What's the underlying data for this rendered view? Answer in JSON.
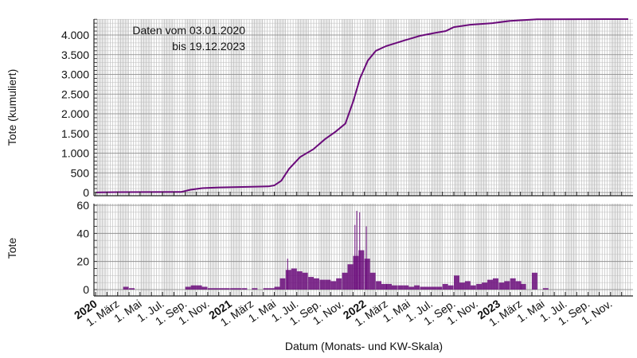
{
  "chart_data": [
    {
      "type": "line",
      "ylabel": "Tote (kumuliert)",
      "annotation": [
        "Daten vom 03.01.2020",
        "bis 19.12.2023"
      ],
      "ylim": [
        0,
        4400
      ],
      "yticks": [
        0,
        500,
        1000,
        1500,
        2000,
        2500,
        3000,
        3500,
        4000
      ],
      "ytick_labels": [
        "0",
        "500",
        "1.000",
        "1.500",
        "2.000",
        "2.500",
        "3.000",
        "3.500",
        "4.000"
      ],
      "grid": true,
      "color": "#6a0a7a",
      "points": [
        [
          "2020-01-03",
          2
        ],
        [
          "2020-03-01",
          10
        ],
        [
          "2020-08-20",
          15
        ],
        [
          "2020-09-15",
          70
        ],
        [
          "2020-10-15",
          110
        ],
        [
          "2020-12-01",
          130
        ],
        [
          "2021-03-01",
          145
        ],
        [
          "2021-04-15",
          155
        ],
        [
          "2021-05-01",
          180
        ],
        [
          "2021-05-20",
          300
        ],
        [
          "2021-06-10",
          600
        ],
        [
          "2021-07-10",
          900
        ],
        [
          "2021-08-15",
          1100
        ],
        [
          "2021-09-15",
          1350
        ],
        [
          "2021-10-15",
          1550
        ],
        [
          "2021-11-10",
          1750
        ],
        [
          "2021-12-01",
          2300
        ],
        [
          "2021-12-20",
          2900
        ],
        [
          "2022-01-10",
          3350
        ],
        [
          "2022-02-01",
          3600
        ],
        [
          "2022-03-01",
          3720
        ],
        [
          "2022-04-15",
          3850
        ],
        [
          "2022-06-01",
          3980
        ],
        [
          "2022-07-10",
          4050
        ],
        [
          "2022-08-10",
          4100
        ],
        [
          "2022-09-01",
          4200
        ],
        [
          "2022-10-15",
          4260
        ],
        [
          "2022-12-15",
          4300
        ],
        [
          "2023-02-01",
          4360
        ],
        [
          "2023-04-15",
          4400
        ],
        [
          "2023-12-19",
          4405
        ]
      ]
    },
    {
      "type": "bar",
      "ylabel": "Tote",
      "ylim": [
        0,
        60
      ],
      "yticks": [
        0,
        20,
        40,
        60
      ],
      "ytick_labels": [
        "0",
        "20",
        "40",
        "60"
      ],
      "grid": true,
      "color": "#6a0a7a",
      "bars": [
        [
          "2020-03-16",
          2
        ],
        [
          "2020-04-01",
          1
        ],
        [
          "2020-09-01",
          2
        ],
        [
          "2020-09-16",
          3
        ],
        [
          "2020-10-01",
          3
        ],
        [
          "2020-10-16",
          2
        ],
        [
          "2020-11-01",
          1
        ],
        [
          "2020-11-16",
          1
        ],
        [
          "2020-12-01",
          1
        ],
        [
          "2020-12-16",
          1
        ],
        [
          "2021-01-01",
          1
        ],
        [
          "2021-01-16",
          1
        ],
        [
          "2021-02-01",
          1
        ],
        [
          "2021-03-01",
          1
        ],
        [
          "2021-04-01",
          1
        ],
        [
          "2021-04-16",
          1
        ],
        [
          "2021-05-01",
          2
        ],
        [
          "2021-05-16",
          8
        ],
        [
          "2021-06-01",
          14
        ],
        [
          "2021-06-16",
          15
        ],
        [
          "2021-07-01",
          13
        ],
        [
          "2021-07-16",
          12
        ],
        [
          "2021-08-01",
          9
        ],
        [
          "2021-08-16",
          8
        ],
        [
          "2021-09-01",
          7
        ],
        [
          "2021-09-16",
          7
        ],
        [
          "2021-10-01",
          6
        ],
        [
          "2021-10-16",
          8
        ],
        [
          "2021-11-01",
          12
        ],
        [
          "2021-11-16",
          18
        ],
        [
          "2021-12-01",
          24
        ],
        [
          "2021-12-16",
          28
        ],
        [
          "2022-01-01",
          22
        ],
        [
          "2022-01-16",
          12
        ],
        [
          "2022-02-01",
          6
        ],
        [
          "2022-02-16",
          4
        ],
        [
          "2022-03-01",
          4
        ],
        [
          "2022-03-16",
          3
        ],
        [
          "2022-04-01",
          3
        ],
        [
          "2022-04-16",
          3
        ],
        [
          "2022-05-01",
          2
        ],
        [
          "2022-05-16",
          3
        ],
        [
          "2022-06-01",
          2
        ],
        [
          "2022-06-16",
          2
        ],
        [
          "2022-07-01",
          2
        ],
        [
          "2022-07-16",
          2
        ],
        [
          "2022-08-01",
          4
        ],
        [
          "2022-08-16",
          3
        ],
        [
          "2022-09-01",
          10
        ],
        [
          "2022-09-16",
          5
        ],
        [
          "2022-10-01",
          6
        ],
        [
          "2022-10-16",
          3
        ],
        [
          "2022-11-01",
          4
        ],
        [
          "2022-11-16",
          5
        ],
        [
          "2022-12-01",
          7
        ],
        [
          "2022-12-16",
          8
        ],
        [
          "2023-01-01",
          5
        ],
        [
          "2023-01-16",
          6
        ],
        [
          "2023-02-01",
          8
        ],
        [
          "2023-02-16",
          6
        ],
        [
          "2023-03-01",
          4
        ],
        [
          "2023-04-01",
          12
        ],
        [
          "2023-05-01",
          1
        ]
      ],
      "peaks": [
        [
          "2021-12-10",
          56
        ],
        [
          "2021-12-18",
          55
        ],
        [
          "2021-12-05",
          46
        ],
        [
          "2022-01-05",
          45
        ],
        [
          "2021-06-05",
          22
        ]
      ]
    }
  ],
  "xaxis": {
    "label": "Datum (Monats- und KW-Skala)",
    "range": [
      "2020-01-01",
      "2024-01-01"
    ],
    "ticks": [
      {
        "date": "2020-01-01",
        "label": "2020",
        "bold": true
      },
      {
        "date": "2020-03-01",
        "label": "1. März"
      },
      {
        "date": "2020-05-01",
        "label": "1. Mai"
      },
      {
        "date": "2020-07-01",
        "label": "1. Jul."
      },
      {
        "date": "2020-09-01",
        "label": "1. Sep."
      },
      {
        "date": "2020-11-01",
        "label": "1. Nov."
      },
      {
        "date": "2021-01-01",
        "label": "2021",
        "bold": true
      },
      {
        "date": "2021-03-01",
        "label": "1. März"
      },
      {
        "date": "2021-05-01",
        "label": "1. Mai"
      },
      {
        "date": "2021-07-01",
        "label": "1. Jul."
      },
      {
        "date": "2021-09-01",
        "label": "1. Sep."
      },
      {
        "date": "2021-11-01",
        "label": "1. Nov."
      },
      {
        "date": "2022-01-01",
        "label": "2022",
        "bold": true
      },
      {
        "date": "2022-03-01",
        "label": "1. März"
      },
      {
        "date": "2022-05-01",
        "label": "1. Mai"
      },
      {
        "date": "2022-07-01",
        "label": "1. Jul."
      },
      {
        "date": "2022-09-01",
        "label": "1. Sep."
      },
      {
        "date": "2022-11-01",
        "label": "1. Nov."
      },
      {
        "date": "2023-01-01",
        "label": "2023",
        "bold": true
      },
      {
        "date": "2023-03-01",
        "label": "1. März"
      },
      {
        "date": "2023-05-01",
        "label": "1. Mai"
      },
      {
        "date": "2023-07-01",
        "label": "1. Jul."
      },
      {
        "date": "2023-09-01",
        "label": "1. Sep."
      },
      {
        "date": "2023-11-01",
        "label": "1. Nov."
      }
    ]
  }
}
